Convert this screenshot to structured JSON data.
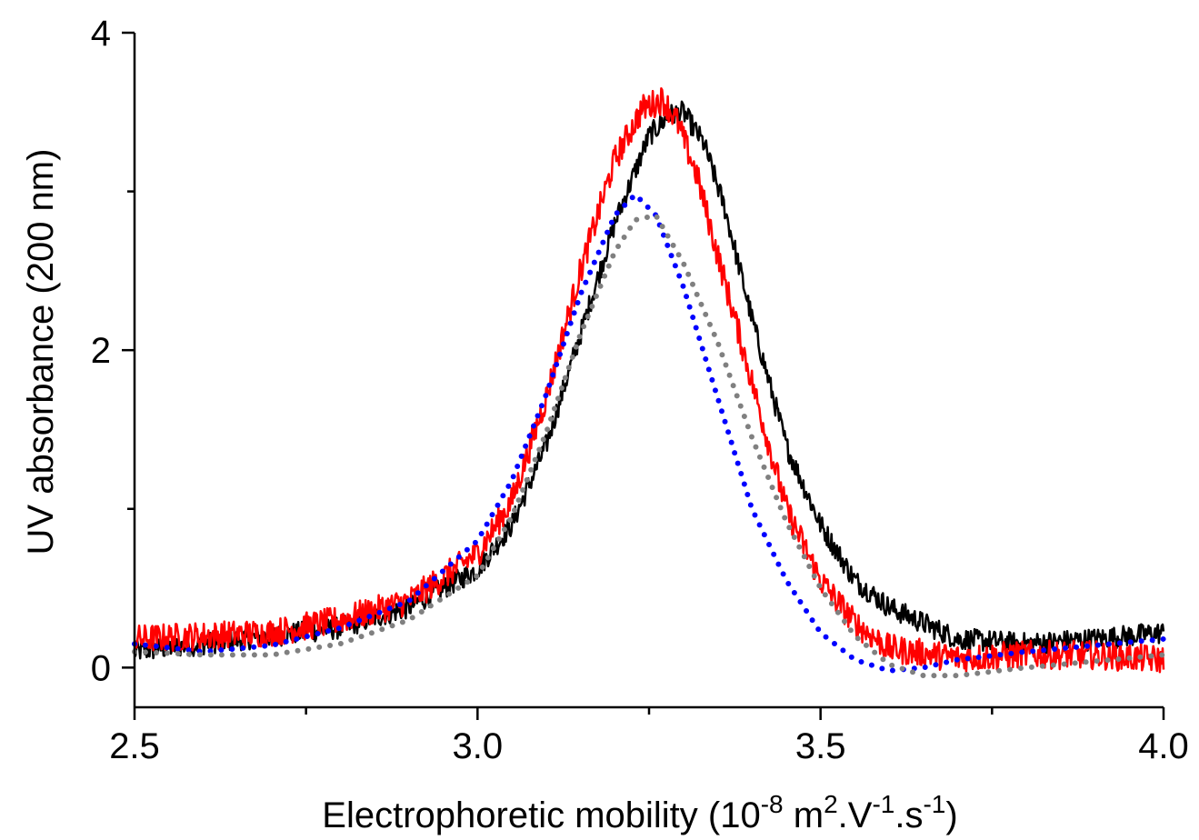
{
  "chart_data": {
    "type": "line",
    "title": "",
    "xlabel": "Electrophoretic mobility (10^-8 m^2.V^-1.s^-1)",
    "xlabel_parts": {
      "prefix": "Electrophoretic mobility (10",
      "exp1": "-8",
      "mid1": " m",
      "exp2": "2",
      "mid2": ".V",
      "exp3": "-1",
      "mid3": ".s",
      "exp4": "-1",
      "suffix": ")"
    },
    "ylabel": "UV absorbance (200 nm)",
    "xlim": [
      2.5,
      4.0
    ],
    "ylim": [
      -0.25,
      4.0
    ],
    "x_ticks": [
      2.5,
      3.0,
      3.5,
      4.0
    ],
    "x_tick_labels": [
      "2.5",
      "3.0",
      "3.5",
      "4.0"
    ],
    "x_minor_ticks": [
      2.75,
      3.25,
      3.75
    ],
    "y_ticks": [
      0,
      2,
      4
    ],
    "y_tick_labels": [
      "0",
      "2",
      "4"
    ],
    "y_minor_ticks": [
      1,
      3
    ],
    "grid": false,
    "legend": "none",
    "series": [
      {
        "color": "#000000",
        "style": "solid-noisy",
        "noise": 0.07,
        "x": [
          2.5,
          2.6,
          2.7,
          2.8,
          2.9,
          3.0,
          3.05,
          3.1,
          3.15,
          3.2,
          3.25,
          3.28,
          3.3,
          3.33,
          3.36,
          3.4,
          3.45,
          3.5,
          3.55,
          3.6,
          3.7,
          3.8,
          3.9,
          4.0
        ],
        "values": [
          0.1,
          0.15,
          0.2,
          0.25,
          0.38,
          0.62,
          0.9,
          1.4,
          2.1,
          2.8,
          3.35,
          3.48,
          3.5,
          3.3,
          2.9,
          2.2,
          1.4,
          0.9,
          0.55,
          0.38,
          0.18,
          0.15,
          0.18,
          0.22
        ]
      },
      {
        "color": "#ff0000",
        "style": "solid-noisy",
        "noise": 0.09,
        "x": [
          2.5,
          2.6,
          2.7,
          2.8,
          2.9,
          3.0,
          3.05,
          3.1,
          3.15,
          3.2,
          3.24,
          3.27,
          3.29,
          3.32,
          3.35,
          3.4,
          3.45,
          3.5,
          3.55,
          3.6,
          3.7,
          3.8,
          3.9,
          4.0
        ],
        "values": [
          0.18,
          0.2,
          0.22,
          0.3,
          0.42,
          0.72,
          1.05,
          1.7,
          2.5,
          3.2,
          3.52,
          3.58,
          3.45,
          3.1,
          2.6,
          1.8,
          1.0,
          0.55,
          0.28,
          0.12,
          0.06,
          0.08,
          0.08,
          0.05
        ]
      },
      {
        "color": "#0000ff",
        "style": "dotted",
        "x": [
          2.5,
          2.6,
          2.7,
          2.8,
          2.9,
          3.0,
          3.05,
          3.1,
          3.15,
          3.2,
          3.23,
          3.26,
          3.3,
          3.35,
          3.4,
          3.45,
          3.5,
          3.55,
          3.6,
          3.65,
          3.7,
          3.8,
          3.9,
          4.0
        ],
        "values": [
          0.15,
          0.1,
          0.14,
          0.25,
          0.42,
          0.8,
          1.18,
          1.72,
          2.35,
          2.85,
          2.98,
          2.85,
          2.4,
          1.7,
          1.0,
          0.55,
          0.22,
          0.05,
          -0.02,
          0.0,
          0.05,
          0.1,
          0.14,
          0.18
        ]
      },
      {
        "color": "#808080",
        "style": "dotted",
        "x": [
          2.5,
          2.6,
          2.7,
          2.8,
          2.9,
          3.0,
          3.05,
          3.1,
          3.15,
          3.2,
          3.23,
          3.26,
          3.3,
          3.35,
          3.4,
          3.45,
          3.5,
          3.55,
          3.6,
          3.65,
          3.7,
          3.8,
          3.9,
          4.0
        ],
        "values": [
          0.1,
          0.08,
          0.08,
          0.15,
          0.3,
          0.58,
          0.95,
          1.48,
          2.1,
          2.62,
          2.82,
          2.85,
          2.55,
          2.05,
          1.45,
          0.92,
          0.5,
          0.2,
          0.02,
          -0.05,
          -0.05,
          0.0,
          0.04,
          0.08
        ]
      }
    ]
  }
}
